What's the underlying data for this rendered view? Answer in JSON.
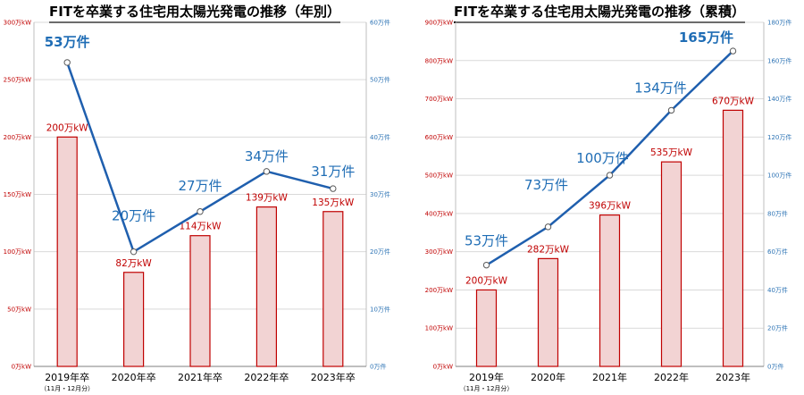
{
  "chart_data": [
    {
      "type": "bar",
      "title": "FITを卒業する住宅用太陽光発電の推移（年別）",
      "categories": [
        "2019年卒",
        "2020年卒",
        "2021年卒",
        "2022年卒",
        "2023年卒"
      ],
      "category_sub": "（11月・12月分）",
      "ylim_left": [
        0,
        300
      ],
      "ylim_right": [
        0,
        60
      ],
      "y_ticks_left": [
        "0万kW",
        "50万kW",
        "100万kW",
        "150万kW",
        "200万kW",
        "250万kW",
        "300万kW"
      ],
      "y_ticks_right": [
        "0万件",
        "10万件",
        "20万件",
        "30万件",
        "40万件",
        "50万件",
        "60万件"
      ],
      "bar_values": [
        200,
        82,
        114,
        139,
        135
      ],
      "bar_labels": [
        "200万kW",
        "82万kW",
        "114万kW",
        "139万kW",
        "135万kW"
      ],
      "line_values": [
        53,
        20,
        27,
        34,
        31
      ],
      "line_labels": [
        "53万件",
        "20万件",
        "27万件",
        "34万件",
        "31万件"
      ],
      "colors": {
        "bar_fill": "#f2d3d3",
        "bar_stroke": "#c00000",
        "line": "#1f5fae",
        "grid": "#d9d9d9"
      }
    },
    {
      "type": "bar",
      "title": "FITを卒業する住宅用太陽光発電の推移（累積）",
      "categories": [
        "2019年",
        "2020年",
        "2021年",
        "2022年",
        "2023年"
      ],
      "category_sub": "（11月・12月分）",
      "ylim_left": [
        0,
        900
      ],
      "ylim_right": [
        0,
        180
      ],
      "y_ticks_left": [
        "0万kW",
        "100万kW",
        "200万kW",
        "300万kW",
        "400万kW",
        "500万kW",
        "600万kW",
        "700万kW",
        "800万kW",
        "900万kW"
      ],
      "y_ticks_right": [
        "0万件",
        "20万件",
        "40万件",
        "60万件",
        "80万件",
        "100万件",
        "120万件",
        "140万件",
        "160万件",
        "180万件"
      ],
      "bar_values": [
        200,
        282,
        396,
        535,
        670
      ],
      "bar_labels": [
        "200万kW",
        "282万kW",
        "396万kW",
        "535万kW",
        "670万kW"
      ],
      "line_values": [
        53,
        73,
        100,
        134,
        165
      ],
      "line_labels": [
        "53万件",
        "73万件",
        "100万件",
        "134万件",
        "165万件"
      ],
      "colors": {
        "bar_fill": "#f2d3d3",
        "bar_stroke": "#c00000",
        "line": "#1f5fae",
        "grid": "#d9d9d9"
      }
    }
  ]
}
